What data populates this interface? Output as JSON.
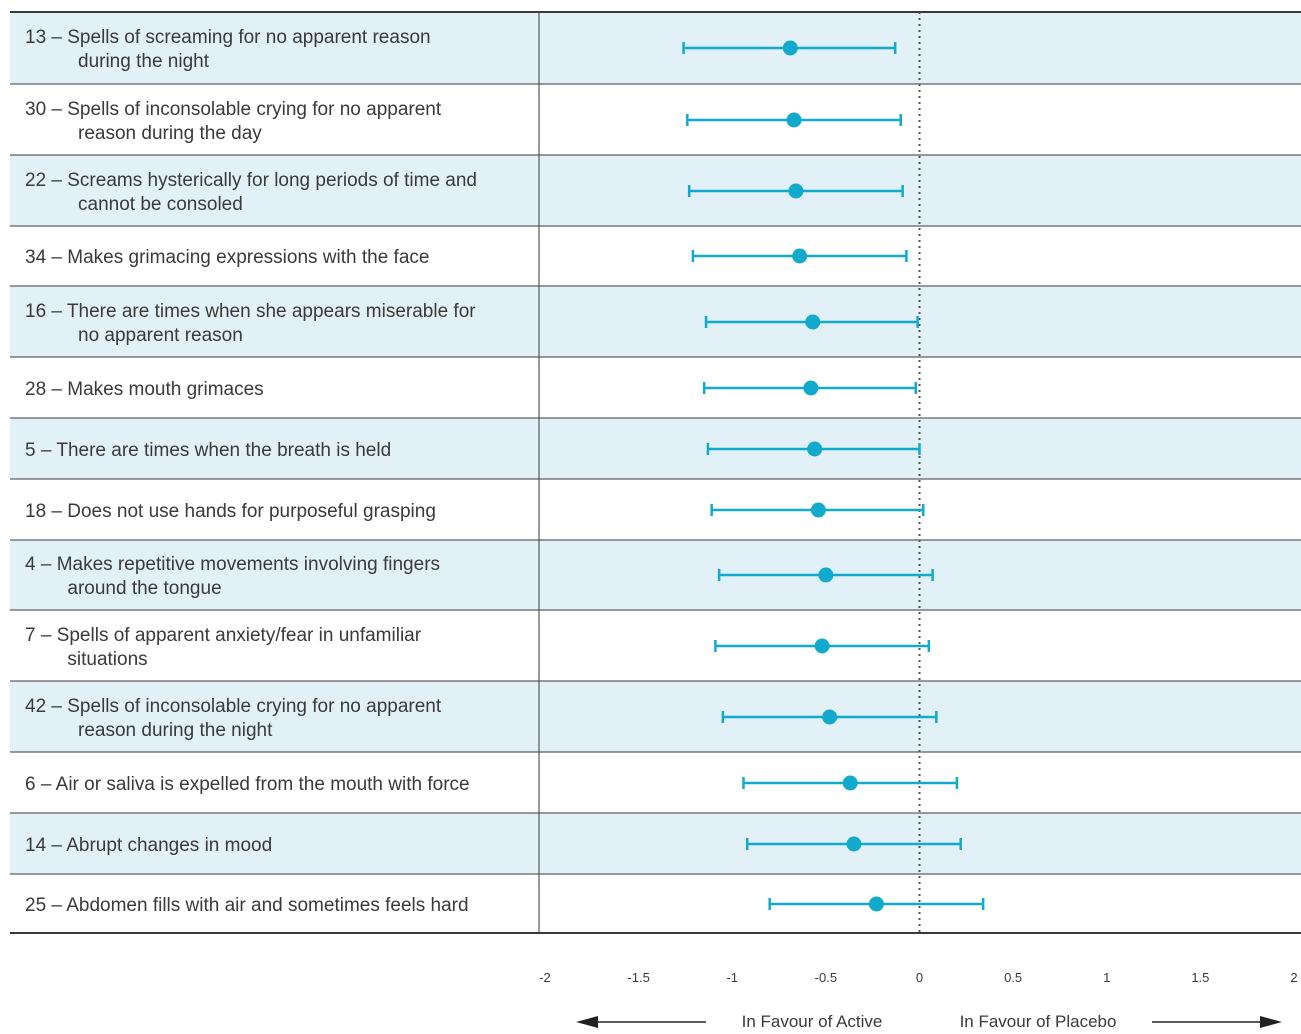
{
  "chart_data": {
    "type": "forest",
    "colors": {
      "marker": "#12aacc",
      "band": "#e2f1f8",
      "grid": "#3a3a3a"
    },
    "xlim": [
      -2,
      2
    ],
    "reference_line": 0,
    "ticks": [
      "-2",
      "-1.5",
      "-1",
      "-0.5",
      "0",
      "0.5",
      "1",
      "1.5",
      "2"
    ],
    "left_caption": "In Favour of Active",
    "right_caption": "In Favour of Placebo",
    "rows": [
      {
        "label": [
          "13 – Spells of screaming for no apparent reason",
          "during the night"
        ],
        "estimate": -0.69,
        "lower": -1.26,
        "upper": -0.13
      },
      {
        "label": [
          "30 – Spells of inconsolable crying for no apparent",
          "reason during the day"
        ],
        "estimate": -0.67,
        "lower": -1.24,
        "upper": -0.1
      },
      {
        "label": [
          "22 – Screams hysterically for long periods of time and",
          "cannot be consoled"
        ],
        "estimate": -0.66,
        "lower": -1.23,
        "upper": -0.09
      },
      {
        "label": [
          "34 – Makes grimacing expressions with the face"
        ],
        "estimate": -0.64,
        "lower": -1.21,
        "upper": -0.07
      },
      {
        "label": [
          "16 – There are times when she appears miserable for",
          "no apparent reason"
        ],
        "estimate": -0.57,
        "lower": -1.14,
        "upper": -0.01
      },
      {
        "label": [
          "28 – Makes mouth grimaces"
        ],
        "estimate": -0.58,
        "lower": -1.15,
        "upper": -0.02
      },
      {
        "label": [
          "5 – There are times when the breath is held"
        ],
        "estimate": -0.56,
        "lower": -1.13,
        "upper": 0.0
      },
      {
        "label": [
          "18 – Does not use hands for purposeful grasping"
        ],
        "estimate": -0.54,
        "lower": -1.11,
        "upper": 0.02
      },
      {
        "label": [
          "4 – Makes repetitive movements involving fingers",
          "around the tongue"
        ],
        "estimate": -0.5,
        "lower": -1.07,
        "upper": 0.07
      },
      {
        "label": [
          "7 – Spells of apparent anxiety/fear in unfamiliar",
          "situations"
        ],
        "estimate": -0.52,
        "lower": -1.09,
        "upper": 0.05
      },
      {
        "label": [
          "42 – Spells of inconsolable crying for no apparent",
          "reason during the night"
        ],
        "estimate": -0.48,
        "lower": -1.05,
        "upper": 0.09
      },
      {
        "label": [
          "6 – Air or saliva is expelled from the mouth with force"
        ],
        "estimate": -0.37,
        "lower": -0.94,
        "upper": 0.2
      },
      {
        "label": [
          "14 – Abrupt changes in mood"
        ],
        "estimate": -0.35,
        "lower": -0.92,
        "upper": 0.22
      },
      {
        "label": [
          "25 – Abdomen fills with air and sometimes feels hard"
        ],
        "estimate": -0.23,
        "lower": -0.8,
        "upper": 0.34
      }
    ]
  }
}
